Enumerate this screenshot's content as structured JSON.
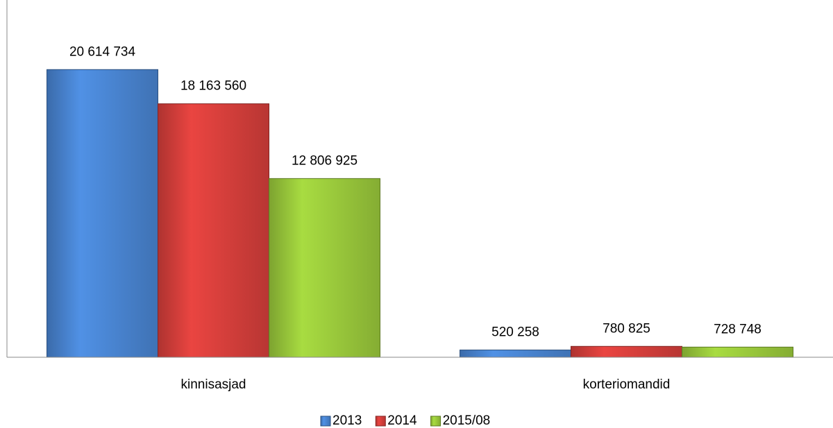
{
  "chart_data": {
    "type": "bar",
    "categories": [
      "kinnisasjad",
      "korteriomandid"
    ],
    "series": [
      {
        "name": "2013",
        "color": "#4a86d4",
        "values": [
          20614734,
          520258
        ],
        "value_labels": [
          "20 614 734",
          "520 258"
        ]
      },
      {
        "name": "2014",
        "color": "#d9403c",
        "values": [
          18163560,
          780825
        ],
        "value_labels": [
          "18 163 560",
          "780 825"
        ]
      },
      {
        "name": "2015/08",
        "color": "#9ccc3c",
        "values": [
          12806925,
          728748
        ],
        "value_labels": [
          "12 806 925",
          "728 748"
        ]
      }
    ],
    "ylim": [
      0,
      25600000
    ],
    "legend": "bottom"
  }
}
